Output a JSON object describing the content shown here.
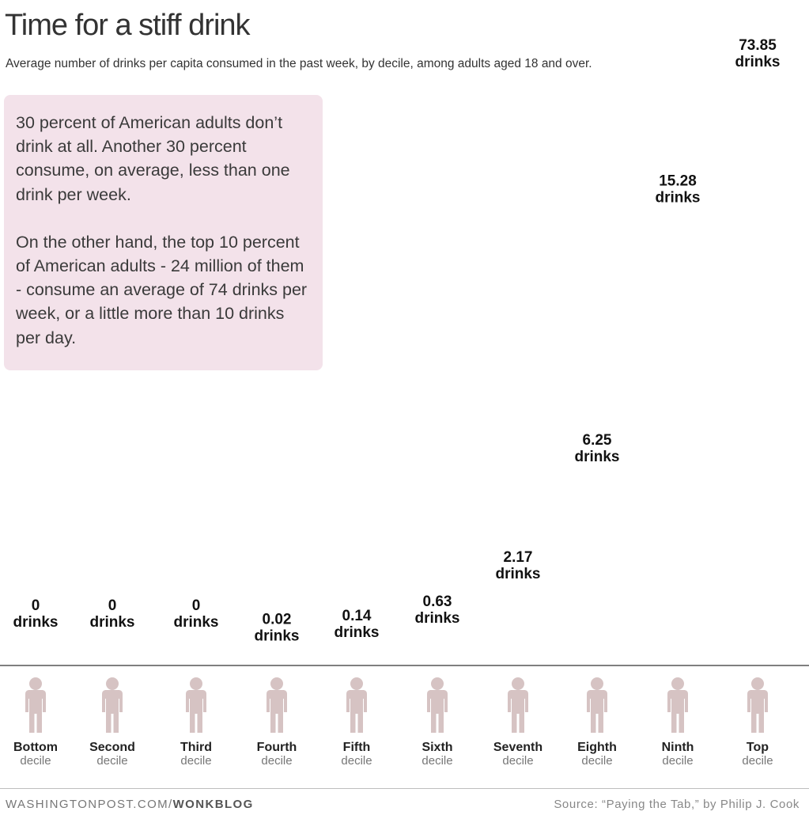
{
  "title": "Time for a stiff drink",
  "subtitle": "Average number of drinks per capita consumed in the past week, by decile, among adults aged 18 and over.",
  "callout": {
    "paragraph1": "30 percent of American adults don’t drink at all. Another 30 percent consume, on average, less than one drink per week.",
    "paragraph2": "On the other hand, the top 10 percent of American adults - 24 million of them - consume an average of 74 drinks per week, or a little more than 10 drinks per day."
  },
  "footer": {
    "site": "WASHINGTONPOST.COM/",
    "section": "WONKBLOG",
    "source": "Source: “Paying the Tab,” by Philip J. Cook"
  },
  "chart_data": {
    "type": "bar",
    "unit_label": "drinks",
    "categories": [
      {
        "rank": "Bottom",
        "word": "decile"
      },
      {
        "rank": "Second",
        "word": "decile"
      },
      {
        "rank": "Third",
        "word": "decile"
      },
      {
        "rank": "Fourth",
        "word": "decile"
      },
      {
        "rank": "Fifth",
        "word": "decile"
      },
      {
        "rank": "Sixth",
        "word": "decile"
      },
      {
        "rank": "Seventh",
        "word": "decile"
      },
      {
        "rank": "Eighth",
        "word": "decile"
      },
      {
        "rank": "Ninth",
        "word": "decile"
      },
      {
        "rank": "Top",
        "word": "decile"
      }
    ],
    "values": [
      "0",
      "0",
      "0",
      "0.02",
      "0.14",
      "0.63",
      "2.17",
      "6.25",
      "15.28",
      "73.85"
    ],
    "colors": {
      "wine": "#d63b8f",
      "beer": "#7cc36a",
      "bottle": "#4a5478",
      "glass": "#f2b25a",
      "person": "#d6c3c3",
      "baseline": "#333333"
    }
  }
}
